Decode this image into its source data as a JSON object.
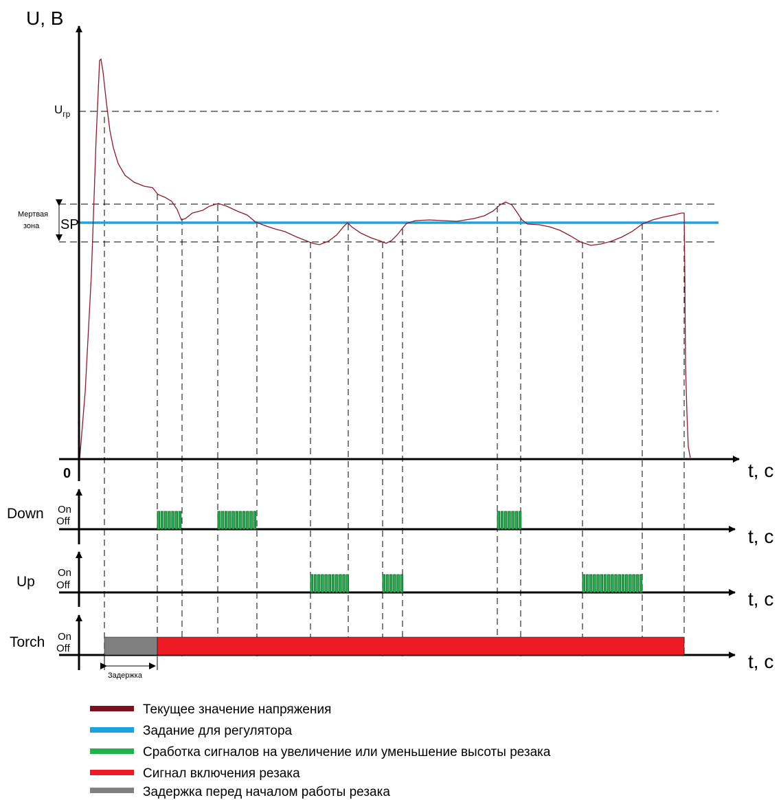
{
  "axes": {
    "y_label": "U, B",
    "x_label": "t, c",
    "origin": "0",
    "u_limit": "U",
    "u_limit_sub": "гр",
    "deadzone_line1": "Мертвая",
    "deadzone_line2": "зона",
    "setpoint": "SP"
  },
  "channels": {
    "down": {
      "label": "Down",
      "on": "On",
      "off": "Off",
      "x_label": "t, c"
    },
    "up": {
      "label": "Up",
      "on": "On",
      "off": "Off",
      "x_label": "t, c"
    },
    "torch": {
      "label": "Torch",
      "on": "On",
      "off": "Off",
      "x_label": "t, c"
    }
  },
  "delay_label": "Задержка",
  "colors": {
    "voltage": "#8b1a2a",
    "setpoint": "#1aa3dc",
    "pulses": "#1f9a3a",
    "torch_on": "#ed1c24",
    "delay": "#808080"
  },
  "legend": [
    {
      "color": "#7a1020",
      "label": "Текущее значение напряжения"
    },
    {
      "color": "#1aa3dc",
      "label": "Задание для регулятора"
    },
    {
      "color": "#22b14c",
      "label": "Сработка сигналов на увеличение или уменьшение высоты резака"
    },
    {
      "color": "#ed1c24",
      "label": "Сигнал включения резака"
    },
    {
      "color": "#808080",
      "label": "Задержка перед началом работы резака"
    }
  ]
}
